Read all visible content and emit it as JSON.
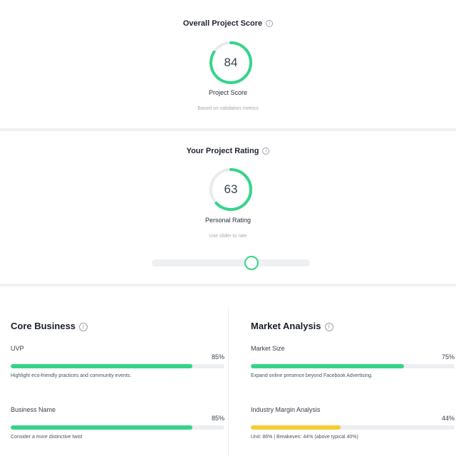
{
  "overall": {
    "title": "Overall Project Score",
    "score": 84,
    "score_text": "84",
    "label": "Project Score",
    "sub": "Based on validation metrics"
  },
  "rating": {
    "title": "Your Project Rating",
    "score": 63,
    "score_text": "63",
    "label": "Personal Rating",
    "sub": "Use slider to rate",
    "slider_value": 0.63
  },
  "core": {
    "title": "Core Business",
    "metrics": [
      {
        "name": "UVP",
        "percent": 85,
        "percent_text": "85%",
        "note": "Highlight eco-friendly practices and community events.",
        "color": "#36d48a"
      },
      {
        "name": "Business Name",
        "percent": 85,
        "percent_text": "85%",
        "note": "Consider a more distinctive twist",
        "color": "#36d48a"
      }
    ]
  },
  "market": {
    "title": "Market Analysis",
    "metrics": [
      {
        "name": "Market Size",
        "percent": 75,
        "percent_text": "75%",
        "note": "Expand online presence beyond Facebook Advertising.",
        "color": "#36d48a"
      },
      {
        "name": "Industry Margin Analysis",
        "percent": 44,
        "percent_text": "44%",
        "note": "Unit: 86% | Breakeven: 44% (above typical 40%)",
        "color": "#f6cb36"
      }
    ]
  },
  "colors": {
    "accent": "#36d48a",
    "warning": "#f6cb36",
    "ring_track": "#e9ebee"
  }
}
